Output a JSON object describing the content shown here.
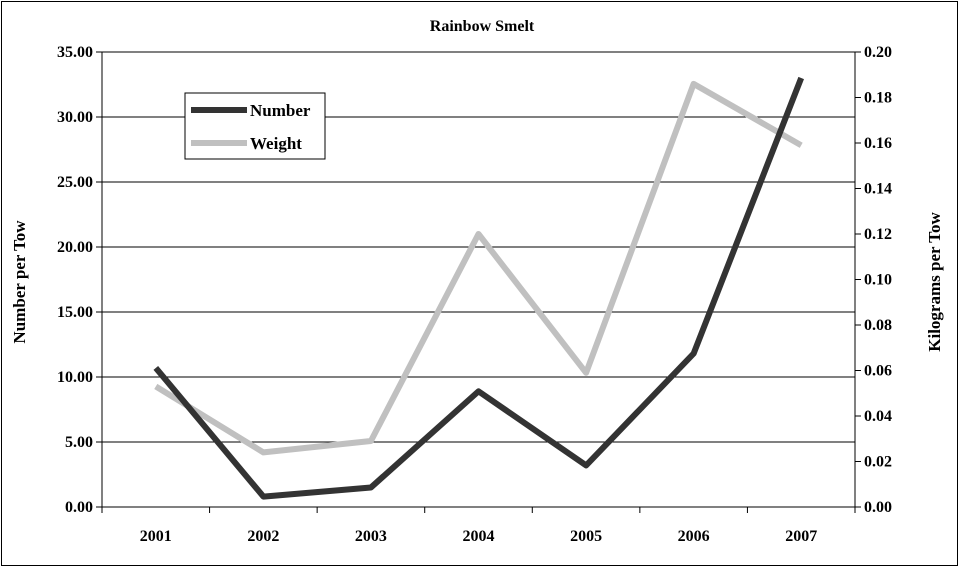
{
  "chart_data": {
    "type": "line",
    "title": "Rainbow Smelt",
    "xlabel": "",
    "categories": [
      "2001",
      "2002",
      "2003",
      "2004",
      "2005",
      "2006",
      "2007"
    ],
    "y_left": {
      "label": "Number per Tow",
      "ylim": [
        0,
        35
      ],
      "ticks": [
        "0.00",
        "5.00",
        "10.00",
        "15.00",
        "20.00",
        "25.00",
        "30.00",
        "35.00"
      ]
    },
    "y_right": {
      "label": "Kilograms per Tow",
      "ylim": [
        0,
        0.2
      ],
      "ticks": [
        "0.00",
        "0.02",
        "0.04",
        "0.06",
        "0.08",
        "0.10",
        "0.12",
        "0.14",
        "0.16",
        "0.18",
        "0.20"
      ]
    },
    "grid": true,
    "legend_position": "top-left",
    "series": [
      {
        "name": "Number",
        "axis": "left",
        "color": "#333333",
        "values": [
          10.7,
          0.8,
          1.5,
          8.9,
          3.2,
          11.8,
          33.0
        ]
      },
      {
        "name": "Weight",
        "axis": "right",
        "color": "#c0c0c0",
        "values": [
          0.053,
          0.024,
          0.029,
          0.12,
          0.059,
          0.186,
          0.159
        ]
      }
    ]
  }
}
